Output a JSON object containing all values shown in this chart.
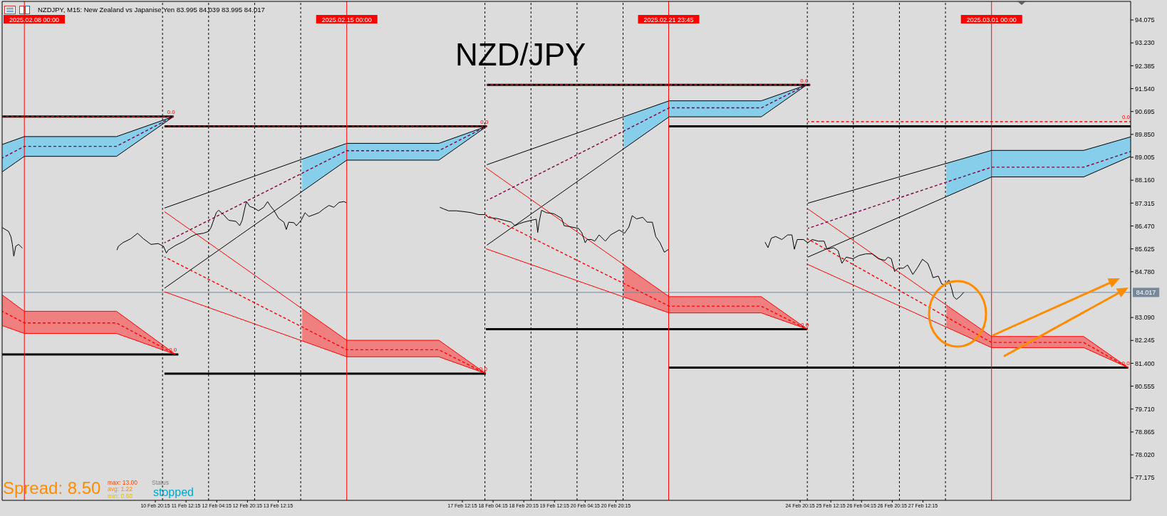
{
  "chart_data": {
    "type": "line",
    "title": "NZDJPY, M15: New Zealand vs Japanise Yen 83.995 84.039 83.995 84.017",
    "annotations": [
      "NZD/JPY",
      "Spread: 8.50",
      "max: 13.00",
      "avg: 1.22",
      "min: 0.60",
      "Status",
      "stopped",
      {
        "text": "0.0",
        "x": "2025-02-11T05:45",
        "y": 90.51
      },
      {
        "text": "0.0",
        "x": "2025-02-18T01:00",
        "y": 90.15
      },
      {
        "text": "0.0",
        "x": "2025-02-24T23:45",
        "y": 91.68
      },
      {
        "text": "0.0",
        "x": "2025-03-04T00:30",
        "y": 90.32
      },
      {
        "text": "0.0",
        "x": "2025-02-11T06:45",
        "y": 81.73
      },
      {
        "text": "0.0",
        "x": "2025-02-18T00:30",
        "y": 81.02
      },
      {
        "text": "0.0",
        "x": "2025-02-25T00:00",
        "y": 82.66
      },
      {
        "text": "0.0",
        "x": "2025-03-03T23:15",
        "y": 81.24
      }
    ],
    "xlim": [
      "2025-02-07T12:25",
      "2025-03-04T00:30"
    ],
    "xticks": [
      {
        "value": "2025-02-10T20:15",
        "label": "10 Feb 20:15"
      },
      {
        "value": "2025-02-11T12:15",
        "label": "11 Feb 12:15"
      },
      {
        "value": "2025-02-12T04:15",
        "label": "12 Feb 04:15"
      },
      {
        "value": "2025-02-12T20:15",
        "label": "12 Feb 20:15"
      },
      {
        "value": "2025-02-13T12:15",
        "label": "13 Feb 12:15"
      },
      {
        "value": "2025-02-17T12:15",
        "label": "17 Feb 12:15"
      },
      {
        "value": "2025-02-18T04:15",
        "label": "18 Feb 04:15"
      },
      {
        "value": "2025-02-18T20:15",
        "label": "18 Feb 20:15"
      },
      {
        "value": "2025-02-19T12:15",
        "label": "19 Feb 12:15"
      },
      {
        "value": "2025-02-20T04:15",
        "label": "20 Feb 04:15"
      },
      {
        "value": "2025-02-20T20:15",
        "label": "20 Feb 20:15"
      },
      {
        "value": "2025-02-24T20:15",
        "label": "24 Feb 20:15"
      },
      {
        "value": "2025-02-25T12:15",
        "label": "25 Feb 12:15"
      },
      {
        "value": "2025-02-26T04:15",
        "label": "26 Feb 04:15"
      },
      {
        "value": "2025-02-26T20:15",
        "label": "26 Feb 20:15"
      },
      {
        "value": "2025-02-27T12:15",
        "label": "27 Feb 12:15"
      }
    ],
    "ylim": [
      76.34,
      94.76
    ],
    "yticks": [
      77.175,
      {
        "value": 78.02,
        "label": "78.020"
      },
      78.865,
      {
        "value": 79.71,
        "label": "79.710"
      },
      80.555,
      {
        "value": 81.4,
        "label": "81.400"
      },
      82.245,
      {
        "value": 83.09,
        "label": "83.090"
      },
      {
        "value": 84.78,
        "label": "84.780"
      },
      85.625,
      {
        "value": 86.47,
        "label": "86.470"
      },
      87.315,
      {
        "value": 88.16,
        "label": "88.160"
      },
      89.005,
      {
        "value": 89.85,
        "label": "89.850"
      },
      90.695,
      {
        "value": 91.54,
        "label": "91.540"
      },
      92.385,
      {
        "value": 93.23,
        "label": "93.230"
      },
      94.075
    ],
    "ref_lines": [
      {
        "axis": "x",
        "value": "2025-02-11T00:00",
        "color": "#000000",
        "line_style": "dashed"
      },
      {
        "axis": "x",
        "value": "2025-02-12T00:00",
        "color": "#000000",
        "line_style": "dashed"
      },
      {
        "axis": "x",
        "value": "2025-02-13T00:00",
        "color": "#000000",
        "line_style": "dashed"
      },
      {
        "axis": "x",
        "value": "2025-02-14T00:00",
        "color": "#000000",
        "line_style": "dashed"
      },
      {
        "axis": "x",
        "value": "2025-02-18T00:00",
        "color": "#000000",
        "line_style": "dashed"
      },
      {
        "axis": "x",
        "value": "2025-02-19T00:00",
        "color": "#000000",
        "line_style": "dashed"
      },
      {
        "axis": "x",
        "value": "2025-02-20T00:00",
        "color": "#000000",
        "line_style": "dashed"
      },
      {
        "axis": "x",
        "value": "2025-02-21T00:00",
        "color": "#000000",
        "line_style": "dashed"
      },
      {
        "axis": "x",
        "value": "2025-02-25T00:00",
        "color": "#000000",
        "line_style": "dashed"
      },
      {
        "axis": "x",
        "value": "2025-02-26T00:00",
        "color": "#000000",
        "line_style": "dashed"
      },
      {
        "axis": "x",
        "value": "2025-02-27T00:00",
        "color": "#000000",
        "line_style": "dashed"
      },
      {
        "axis": "x",
        "value": "2025-02-28T00:00",
        "color": "#000000",
        "line_style": "dashed"
      },
      {
        "axis": "x",
        "value": "2025-02-08T00:00",
        "label": "2025.02.08 00:00",
        "color": "#ff0000"
      },
      {
        "axis": "x",
        "value": "2025-02-15T00:00",
        "label": "2025.02.15 00:00",
        "color": "#ff0000"
      },
      {
        "axis": "x",
        "value": "2025-02-21T23:45",
        "label": "2025.02.21 23:45",
        "color": "#ff0000"
      },
      {
        "axis": "x",
        "value": "2025-03-01T00:00",
        "label": "2025.03.01 00:00",
        "color": "#ff0000"
      },
      {
        "axis": "y",
        "value": 84.017,
        "label": "84.017",
        "color": "#778899"
      }
    ],
    "series": [
      {
        "color": "#000000",
        "x": [
          "2025-02-07T12:30",
          "2025-02-08T00:00",
          "2025-02-10T00:00",
          "2025-02-11T05:45"
        ],
        "values": [
          89.48,
          89.77,
          89.77,
          90.51
        ]
      },
      {
        "color": "#800040",
        "x": [
          "2025-02-07T12:30",
          "2025-02-08T00:00",
          "2025-02-10T00:00",
          "2025-02-11T05:45"
        ],
        "values": [
          88.98,
          89.41,
          89.41,
          90.51
        ],
        "line_style": "dashed",
        "lower": [
          88.47,
          89.04,
          89.04,
          90.51
        ],
        "upper": [
          89.48,
          89.77,
          89.77,
          90.51
        ]
      },
      {
        "color": "#000000",
        "x": [
          "2025-02-07T12:30",
          "2025-02-08T00:00",
          "2025-02-10T00:00",
          "2025-02-11T05:45"
        ],
        "values": [
          88.47,
          89.04,
          89.04,
          90.51
        ]
      },
      {
        "color": "#000000",
        "x": [
          "2025-02-11T01:00",
          "2025-02-15T00:00",
          "2025-02-17T00:00",
          "2025-02-18T01:00"
        ],
        "values": [
          87.13,
          89.52,
          89.52,
          90.15
        ]
      },
      {
        "color": "#800040",
        "x": [
          "2025-02-11T01:00",
          "2025-02-14T00:45",
          "2025-02-15T00:00",
          "2025-02-17T00:00",
          "2025-02-18T01:00"
        ],
        "values": [
          85.85,
          88.42,
          89.25,
          89.25,
          90.15
        ],
        "line_style": "dashed",
        "lower": [
          null,
          87.75,
          88.9,
          88.9,
          90.15
        ],
        "upper": [
          null,
          88.93,
          89.52,
          89.52,
          90.15
        ]
      },
      {
        "color": "#000000",
        "x": [
          "2025-02-11T01:00",
          "2025-02-15T00:00",
          "2025-02-17T00:00",
          "2025-02-18T01:00"
        ],
        "values": [
          84.17,
          88.9,
          88.9,
          90.15
        ]
      },
      {
        "color": "#ff0000",
        "x": [
          "2025-02-11T01:00",
          "2025-02-15T00:00",
          "2025-02-17T00:00",
          "2025-02-18T00:30"
        ],
        "values": [
          87.0,
          82.25,
          82.25,
          81.02
        ]
      },
      {
        "color": "#ff0000",
        "x": [
          "2025-02-11T01:00",
          "2025-02-14T00:45",
          "2025-02-15T00:00",
          "2025-02-17T00:00",
          "2025-02-18T00:30"
        ],
        "values": [
          85.33,
          82.74,
          81.9,
          81.9,
          81.02
        ],
        "line_style": "dashed",
        "lower": [
          null,
          82.23,
          81.64,
          81.64,
          81.02
        ],
        "upper": [
          null,
          83.41,
          82.25,
          82.25,
          81.02
        ]
      },
      {
        "color": "#ff0000",
        "x": [
          "2025-02-11T01:00",
          "2025-02-15T00:00",
          "2025-02-17T00:00",
          "2025-02-18T00:30"
        ],
        "values": [
          84.04,
          81.64,
          81.64,
          81.02
        ]
      },
      {
        "color": "#000000",
        "x": [
          "2025-02-18T01:00",
          "2025-02-22T00:00",
          "2025-02-24T00:00",
          "2025-02-24T23:45"
        ],
        "values": [
          88.73,
          91.09,
          91.09,
          91.68
        ]
      },
      {
        "color": "#800040",
        "x": [
          "2025-02-18T01:00",
          "2025-02-21T00:15",
          "2025-02-22T00:00",
          "2025-02-24T00:00",
          "2025-02-24T23:45"
        ],
        "values": [
          87.41,
          89.97,
          90.83,
          90.83,
          91.68
        ],
        "line_style": "dashed",
        "lower": [
          null,
          89.32,
          90.5,
          90.5,
          91.68
        ],
        "upper": [
          null,
          90.5,
          91.09,
          91.09,
          91.68
        ]
      },
      {
        "color": "#000000",
        "x": [
          "2025-02-18T01:00",
          "2025-02-22T00:00",
          "2025-02-24T00:00",
          "2025-02-24T23:45"
        ],
        "values": [
          85.76,
          90.5,
          90.5,
          91.68
        ]
      },
      {
        "color": "#ff0000",
        "x": [
          "2025-02-18T00:30",
          "2025-02-22T00:00",
          "2025-02-24T00:00",
          "2025-02-25T00:00"
        ],
        "values": [
          88.62,
          83.86,
          83.86,
          82.66
        ]
      },
      {
        "color": "#ff0000",
        "x": [
          "2025-02-18T00:30",
          "2025-02-21T00:15",
          "2025-02-22T00:00",
          "2025-02-24T00:00",
          "2025-02-25T00:00"
        ],
        "values": [
          86.88,
          84.35,
          83.51,
          83.51,
          82.66
        ],
        "line_style": "dashed",
        "lower": [
          null,
          83.85,
          83.26,
          83.26,
          82.66
        ],
        "upper": [
          null,
          85.04,
          83.86,
          83.86,
          82.66
        ]
      },
      {
        "color": "#ff0000",
        "x": [
          "2025-02-18T00:30",
          "2025-02-22T00:00",
          "2025-02-24T00:00",
          "2025-02-25T00:00"
        ],
        "values": [
          85.63,
          83.26,
          83.26,
          82.66
        ]
      },
      {
        "color": "#000000",
        "x": [
          "2025-02-25T00:15",
          "2025-03-01T00:00",
          "2025-03-03T00:00",
          "2025-03-04T00:30"
        ],
        "values": [
          87.31,
          89.26,
          89.26,
          89.76
        ]
      },
      {
        "color": "#800040",
        "x": [
          "2025-02-25T00:15",
          "2025-02-28T00:30",
          "2025-03-01T00:00",
          "2025-03-03T00:00",
          "2025-03-04T00:30"
        ],
        "values": [
          86.38,
          88.09,
          88.64,
          88.64,
          89.22
        ],
        "line_style": "dashed",
        "lower": [
          null,
          87.56,
          88.28,
          88.28,
          89.04
        ],
        "upper": [
          null,
          88.78,
          89.26,
          89.26,
          89.76
        ]
      },
      {
        "color": "#000000",
        "x": [
          "2025-02-25T00:15",
          "2025-03-01T00:00",
          "2025-03-03T00:00",
          "2025-03-04T00:30"
        ],
        "values": [
          85.32,
          88.28,
          88.28,
          89.04
        ]
      },
      {
        "color": "#ff0000",
        "x": [
          "2025-02-25T00:15",
          "2025-03-01T00:00",
          "2025-03-03T00:00",
          "2025-03-03T23:15"
        ],
        "values": [
          87.1,
          82.39,
          82.39,
          81.24
        ]
      },
      {
        "color": "#ff0000",
        "x": [
          "2025-02-25T00:15",
          "2025-02-28T00:30",
          "2025-03-01T00:00",
          "2025-03-03T00:00",
          "2025-03-03T23:15"
        ],
        "values": [
          85.99,
          83.11,
          82.17,
          82.17,
          81.24
        ],
        "line_style": "dashed",
        "lower": [
          null,
          82.74,
          81.98,
          81.98,
          81.24
        ],
        "upper": [
          null,
          83.54,
          82.39,
          82.39,
          81.24
        ]
      },
      {
        "color": "#ff0000",
        "x": [
          "2025-02-25T00:15",
          "2025-03-01T00:00",
          "2025-03-03T00:00",
          "2025-03-03T23:15"
        ],
        "values": [
          85.05,
          81.98,
          81.98,
          81.24
        ]
      },
      {
        "color": "#ff0000",
        "x": [
          "2025-02-07T12:30",
          "2025-02-08T00:00",
          "2025-02-10T00:00",
          "2025-02-11T06:45"
        ],
        "values": [
          83.92,
          83.32,
          83.32,
          81.73
        ]
      },
      {
        "color": "#ff0000",
        "x": [
          "2025-02-07T12:30",
          "2025-02-08T00:00",
          "2025-02-10T00:00",
          "2025-02-11T06:45"
        ],
        "values": [
          83.32,
          82.89,
          82.89,
          81.73
        ],
        "line_style": "dashed",
        "lower": [
          82.79,
          82.5,
          82.5,
          81.73
        ],
        "upper": [
          83.92,
          83.32,
          83.32,
          81.73
        ]
      },
      {
        "color": "#ff0000",
        "x": [
          "2025-02-07T12:30",
          "2025-02-08T00:00",
          "2025-02-10T00:00",
          "2025-02-11T06:45"
        ],
        "values": [
          82.79,
          82.5,
          82.5,
          81.73
        ]
      },
      {
        "color": "#000000",
        "x": [
          "2025-02-07T12:30",
          "2025-02-11T05:45"
        ],
        "values": [
          90.51,
          90.51
        ]
      },
      {
        "color": "#ff0000",
        "x": [
          "2025-02-07T12:30",
          "2025-02-11T05:45"
        ],
        "values": [
          90.51,
          90.51
        ],
        "line_style": "dashed"
      },
      {
        "color": "#000000",
        "x": [
          "2025-02-11T01:00",
          "2025-02-18T01:00"
        ],
        "values": [
          90.15,
          90.15
        ]
      },
      {
        "color": "#ff0000",
        "x": [
          "2025-02-11T01:00",
          "2025-02-18T01:00"
        ],
        "values": [
          90.15,
          90.15
        ],
        "line_style": "dashed"
      },
      {
        "color": "#000000",
        "x": [
          "2025-02-11T01:00",
          "2025-02-18T00:30"
        ],
        "values": [
          81.02,
          81.02
        ]
      },
      {
        "color": "#000000",
        "x": [
          "2025-02-18T01:00",
          "2025-02-25T01:30"
        ],
        "values": [
          91.68,
          91.68
        ]
      },
      {
        "color": "#ff0000",
        "x": [
          "2025-02-18T01:00",
          "2025-02-25T01:30"
        ],
        "values": [
          91.68,
          91.68
        ],
        "line_style": "dashed"
      },
      {
        "color": "#000000",
        "x": [
          "2025-02-18T00:30",
          "2025-02-25T00:00"
        ],
        "values": [
          82.66,
          82.66
        ]
      },
      {
        "color": "#000000",
        "x": [
          "2025-02-21T23:45",
          "2025-03-04T00:30"
        ],
        "values": [
          90.15,
          90.15
        ]
      },
      {
        "color": "#ff0000",
        "x": [
          "2025-02-25T00:15",
          "2025-03-04T00:30"
        ],
        "values": [
          90.32,
          90.32
        ],
        "line_style": "dashed"
      },
      {
        "color": "#000000",
        "x": [
          "2025-02-21T23:45",
          "2025-03-03T23:15"
        ],
        "values": [
          81.24,
          81.24
        ]
      },
      {
        "color": "#000000",
        "x": [
          "2025-02-07T12:30",
          "2025-02-11T08:15"
        ],
        "values": [
          81.73,
          81.73
        ]
      },
      {
        "color": "#000000",
        "x": [
          "2025-02-07T12:30",
          "2025-02-07T15:45",
          "2025-02-07T17:00",
          "2025-02-07T17:45",
          "2025-02-07T18:30",
          "2025-02-07T19:30",
          "2025-02-07T21:00",
          "2025-02-07T23:00",
          "2025-02-09T00:00",
          "2025-02-10T00:15",
          "2025-02-10T01:00",
          "2025-02-10T03:30",
          "2025-02-10T07:30",
          "2025-02-10T11:00",
          "2025-02-10T14:00",
          "2025-02-10T18:00",
          "2025-02-10T21:45",
          "2025-02-11T00:30",
          "2025-02-11T02:00",
          "2025-02-11T03:00",
          "2025-02-11T07:00",
          "2025-02-11T11:00",
          "2025-02-11T14:45",
          "2025-02-11T17:30",
          "2025-02-11T21:15",
          "2025-02-12T00:00",
          "2025-02-12T01:15",
          "2025-02-12T04:00",
          "2025-02-12T05:15",
          "2025-02-12T07:45",
          "2025-02-12T10:30",
          "2025-02-12T14:15",
          "2025-02-12T16:15",
          "2025-02-12T17:30",
          "2025-02-12T19:00",
          "2025-02-12T19:45",
          "2025-02-12T21:30",
          "2025-02-12T23:30",
          "2025-02-13T02:00",
          "2025-02-13T04:45",
          "2025-02-13T06:45",
          "2025-02-13T08:00",
          "2025-02-13T10:00",
          "2025-02-13T12:30",
          "2025-02-13T15:15",
          "2025-02-13T16:30",
          "2025-02-13T17:45",
          "2025-02-13T20:30",
          "2025-02-13T21:45",
          "2025-02-14T00:15",
          "2025-02-14T02:15",
          "2025-02-14T04:15",
          "2025-02-14T07:00",
          "2025-02-14T09:30",
          "2025-02-14T12:00",
          "2025-02-14T14:45",
          "2025-02-14T17:15",
          "2025-02-14T20:00",
          "2025-02-14T22:30",
          "2025-02-14T23:45",
          "2025-02-16T00:00",
          "2025-02-17T00:30",
          "2025-02-17T02:30",
          "2025-02-17T05:00",
          "2025-02-17T09:00",
          "2025-02-17T13:00",
          "2025-02-17T17:00",
          "2025-02-17T20:45",
          "2025-02-18T00:00",
          "2025-02-18T02:00",
          "2025-02-18T06:00",
          "2025-02-18T10:00",
          "2025-02-18T13:45",
          "2025-02-18T15:45",
          "2025-02-18T17:45",
          "2025-02-18T20:15",
          "2025-02-19T00:15",
          "2025-02-19T02:45",
          "2025-02-19T03:30",
          "2025-02-19T04:15",
          "2025-02-19T05:30",
          "2025-02-19T08:00",
          "2025-02-19T12:00",
          "2025-02-19T16:00",
          "2025-02-19T17:15",
          "2025-02-19T19:45",
          "2025-02-20T00:45",
          "2025-02-20T02:30",
          "2025-02-20T04:15",
          "2025-02-20T05:15",
          "2025-02-20T07:30",
          "2025-02-20T09:15",
          "2025-02-20T11:30",
          "2025-02-20T14:45",
          "2025-02-20T17:30",
          "2025-02-20T22:00",
          "2025-02-21T00:45",
          "2025-02-21T03:00",
          "2025-02-21T04:45",
          "2025-02-21T07:00",
          "2025-02-21T10:15",
          "2025-02-21T12:30",
          "2025-02-21T15:15",
          "2025-02-21T17:00",
          "2025-02-21T19:15",
          "2025-02-21T21:30",
          "2025-02-21T23:45",
          "2025-02-23T00:00",
          "2025-02-24T02:00",
          "2025-02-24T03:30",
          "2025-02-24T05:15",
          "2025-02-24T07:30",
          "2025-02-24T10:45",
          "2025-02-24T13:45",
          "2025-02-24T16:00",
          "2025-02-24T17:15",
          "2025-02-24T18:45",
          "2025-02-24T22:00",
          "2025-02-25T00:15",
          "2025-02-25T02:30",
          "2025-02-25T05:45",
          "2025-02-25T08:45",
          "2025-02-25T10:15",
          "2025-02-25T13:45",
          "2025-02-25T16:00",
          "2025-02-25T18:00",
          "2025-02-25T20:15",
          "2025-02-25T23:45",
          "2025-02-26T03:00",
          "2025-02-26T06:30",
          "2025-02-26T09:45",
          "2025-02-26T13:00",
          "2025-02-26T16:30",
          "2025-02-26T18:00",
          "2025-02-26T19:45",
          "2025-02-26T21:30",
          "2025-02-26T23:15",
          "2025-02-27T02:00",
          "2025-02-27T04:15",
          "2025-02-27T07:00",
          "2025-02-27T09:15",
          "2025-02-27T12:00",
          "2025-02-27T14:45",
          "2025-02-27T16:30",
          "2025-02-27T17:30",
          "2025-02-27T20:15",
          "2025-02-27T22:00",
          "2025-02-27T23:45",
          "2025-02-28T01:45",
          "2025-02-28T03:00",
          "2025-02-28T04:15",
          "2025-02-28T05:45",
          "2025-02-28T07:30",
          "2025-02-28T09:30"
        ],
        "values": [
          86.41,
          86.27,
          86.07,
          85.79,
          85.35,
          85.72,
          85.79,
          85.65,
          null,
          85.58,
          85.72,
          85.86,
          86.0,
          86.2,
          86.0,
          85.79,
          85.82,
          85.72,
          85.47,
          85.58,
          85.76,
          85.9,
          86.07,
          86.16,
          86.2,
          86.27,
          86.41,
          86.96,
          87.05,
          86.89,
          86.68,
          86.64,
          86.48,
          86.68,
          87.16,
          87.37,
          87.19,
          87.14,
          87.03,
          87.16,
          87.37,
          87.23,
          87.05,
          86.75,
          86.61,
          86.34,
          86.61,
          86.59,
          86.48,
          86.68,
          86.96,
          86.82,
          86.89,
          86.96,
          87.1,
          87.23,
          87.16,
          87.34,
          87.37,
          87.33,
          null,
          87.16,
          87.1,
          87.03,
          87.03,
          87.0,
          86.96,
          86.89,
          86.89,
          86.78,
          86.75,
          86.68,
          86.61,
          86.48,
          86.55,
          86.61,
          86.68,
          86.72,
          86.23,
          86.61,
          87.05,
          86.96,
          86.92,
          86.75,
          86.48,
          86.45,
          86.38,
          86.22,
          85.85,
          85.97,
          85.97,
          85.91,
          86.14,
          85.91,
          86.14,
          86.32,
          86.2,
          86.43,
          86.85,
          86.73,
          86.79,
          86.61,
          86.61,
          86.08,
          85.85,
          85.5,
          85.61,
          null,
          85.87,
          85.67,
          86.02,
          86.08,
          85.97,
          86.14,
          86.14,
          85.61,
          85.97,
          85.97,
          85.85,
          85.97,
          85.91,
          85.91,
          85.61,
          85.67,
          85.56,
          85.09,
          85.32,
          85.26,
          85.38,
          85.44,
          85.44,
          85.26,
          85.2,
          85.32,
          85.26,
          84.79,
          84.91,
          84.91,
          85.03,
          84.68,
          84.91,
          85.24,
          85.09,
          84.79,
          84.56,
          84.62,
          84.33,
          84.3,
          84.47,
          84.21,
          83.86,
          83.76,
          83.86,
          84.02
        ]
      }
    ]
  }
}
